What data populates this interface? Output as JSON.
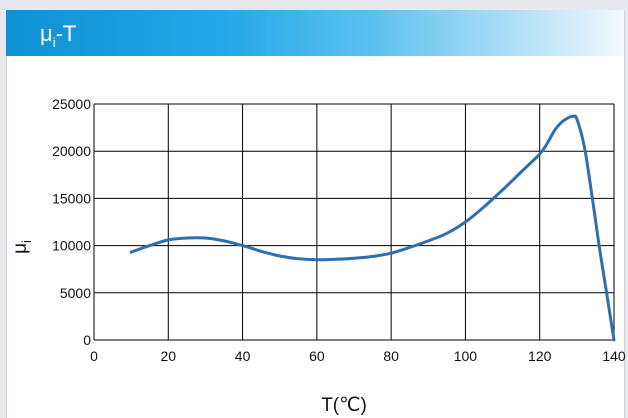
{
  "header": {
    "title_main": "μ",
    "title_sub": "i",
    "title_rest": "-T"
  },
  "colors": {
    "header_start": "#0f91d3",
    "curve": "#2f6fad",
    "grid": "#000000",
    "background": "#ffffff"
  },
  "chart_data": {
    "type": "line",
    "title": "μi-T",
    "xlabel": "T(℃)",
    "ylabel_main": "μ",
    "ylabel_sub": "i",
    "xlim": [
      0,
      140
    ],
    "ylim": [
      0,
      25000
    ],
    "xticks": [
      "0",
      "20",
      "40",
      "60",
      "80",
      "100",
      "120",
      "140"
    ],
    "yticks": [
      "0",
      "5000",
      "10000",
      "15000",
      "20000",
      "25000"
    ],
    "grid": true,
    "series": [
      {
        "x": [
          10,
          15,
          20,
          25,
          30,
          35,
          40,
          45,
          50,
          55,
          60,
          65,
          70,
          75,
          80,
          85,
          90,
          95,
          100,
          105,
          110,
          115,
          120,
          122,
          124,
          126,
          128,
          129,
          130,
          132,
          134,
          136,
          138,
          140
        ],
        "y": [
          9300,
          10000,
          10600,
          10800,
          10800,
          10500,
          10000,
          9400,
          8900,
          8600,
          8500,
          8550,
          8650,
          8850,
          9200,
          9800,
          10500,
          11300,
          12500,
          14100,
          15900,
          17800,
          19700,
          20800,
          22200,
          23100,
          23600,
          23700,
          23400,
          20500,
          15500,
          10000,
          5000,
          0
        ]
      }
    ]
  }
}
